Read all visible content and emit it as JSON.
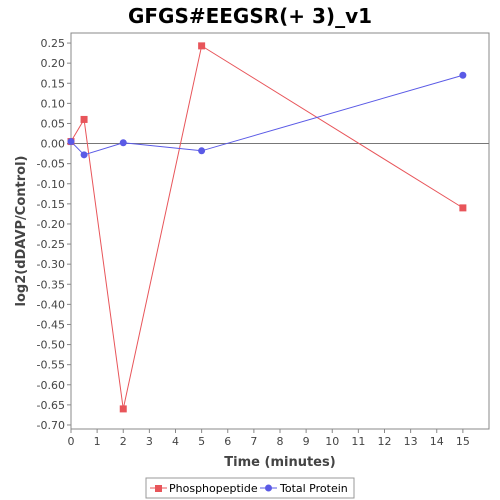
{
  "chart_data": {
    "type": "line",
    "title": "GFGS#EEGSR(+ 3)_v1",
    "xlabel": "Time (minutes)",
    "ylabel": "log2(dDAVP/Control)",
    "xlim": [
      0,
      16
    ],
    "ylim": [
      -0.71,
      0.275
    ],
    "x_ticks": [
      0,
      1,
      2,
      3,
      4,
      5,
      6,
      7,
      8,
      9,
      10,
      11,
      12,
      13,
      14,
      15
    ],
    "y_ticks": [
      0.25,
      0.2,
      0.15,
      0.1,
      0.05,
      0.0,
      -0.05,
      -0.1,
      -0.15,
      -0.2,
      -0.25,
      -0.3,
      -0.35,
      -0.4,
      -0.45,
      -0.5,
      -0.55,
      -0.6,
      -0.65,
      -0.7
    ],
    "y_tick_labels": [
      "0.25",
      "0.20",
      "0.15",
      "0.10",
      "0.05",
      "0.00",
      "-0.05",
      "-0.10",
      "-0.15",
      "-0.20",
      "-0.25",
      "-0.30",
      "-0.35",
      "-0.40",
      "-0.45",
      "-0.50",
      "-0.55",
      "-0.60",
      "-0.65",
      "-0.70"
    ],
    "grid": false,
    "zero_line": true,
    "legend_position": "bottom",
    "series": [
      {
        "name": "Phosphopeptide",
        "color": "#e8555a",
        "marker": "square",
        "x": [
          0,
          0.5,
          2,
          5,
          15
        ],
        "y": [
          0.005,
          0.06,
          -0.66,
          0.243,
          -0.16
        ]
      },
      {
        "name": "Total Protein",
        "color": "#5a5ae6",
        "marker": "circle",
        "x": [
          0,
          0.5,
          2,
          5,
          15
        ],
        "y": [
          0.005,
          -0.028,
          0.002,
          -0.018,
          0.17
        ]
      }
    ]
  }
}
